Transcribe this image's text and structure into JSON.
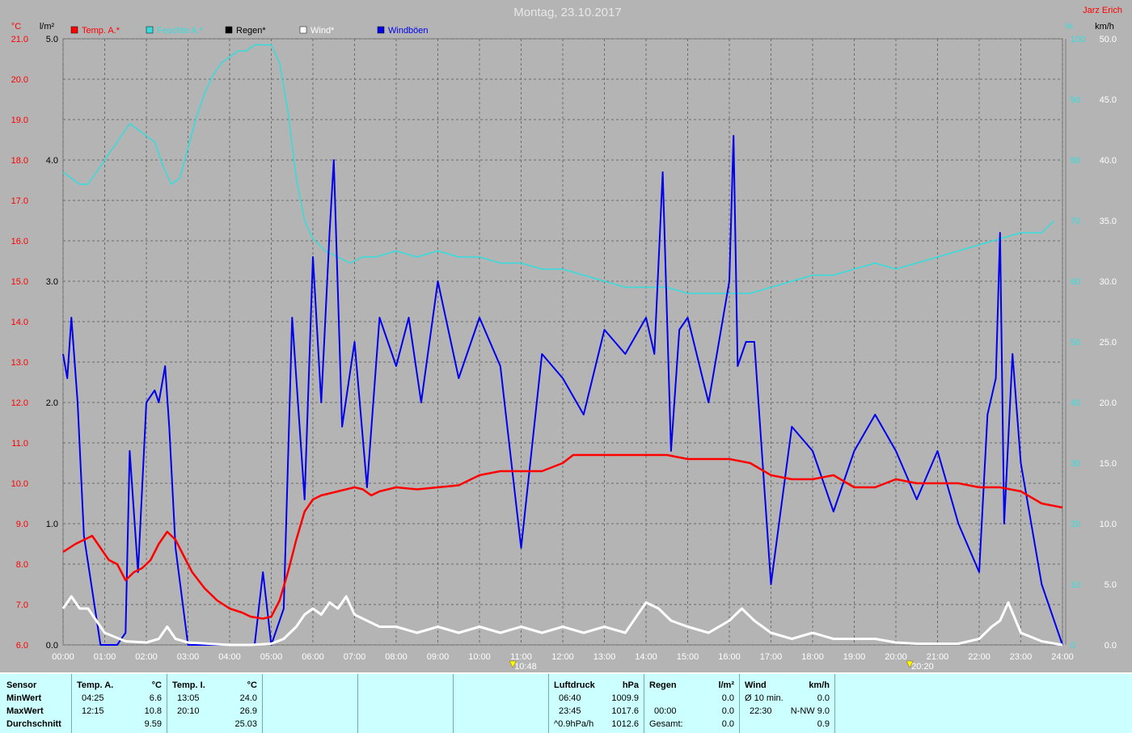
{
  "chart_data": {
    "type": "line",
    "title": "Montag, 23.10.2017",
    "author": "Jarz Erich",
    "legend": [
      {
        "label": "Temp. A.*",
        "color": "#ff0000"
      },
      {
        "label": "Feuchte A.*",
        "color": "#33dddd"
      },
      {
        "label": "Regen*",
        "color": "#000000"
      },
      {
        "label": "Wind*",
        "color": "#ffffff"
      },
      {
        "label": "Windböen",
        "color": "#0000ee"
      }
    ],
    "axes": {
      "temp": {
        "unit": "°C",
        "range": [
          6.0,
          21.0
        ],
        "ticks": [
          "21.0",
          "20.0",
          "19.0",
          "18.0",
          "17.0",
          "16.0",
          "15.0",
          "14.0",
          "13.0",
          "12.0",
          "11.0",
          "10.0",
          "9.0",
          "8.0",
          "7.0",
          "6.0"
        ]
      },
      "rain": {
        "unit": "l/m²",
        "range": [
          0.0,
          5.0
        ],
        "ticks": [
          "5.0",
          "4.0",
          "3.0",
          "2.0",
          "1.0",
          "0.0"
        ]
      },
      "humidity": {
        "unit": "%",
        "range": [
          0,
          100
        ],
        "ticks": [
          "100",
          "90",
          "80",
          "70",
          "60",
          "50",
          "40",
          "30",
          "20",
          "10",
          "0"
        ]
      },
      "wind": {
        "unit": "km/h",
        "range": [
          0.0,
          50.0
        ],
        "ticks": [
          "50.0",
          "45.0",
          "40.0",
          "35.0",
          "30.0",
          "25.0",
          "20.0",
          "15.0",
          "10.0",
          "5.0",
          "0.0"
        ]
      },
      "x": {
        "ticks": [
          "00:00",
          "01:00",
          "02:00",
          "03:00",
          "04:00",
          "05:00",
          "06:00",
          "07:00",
          "08:00",
          "09:00",
          "10:00",
          "11:00",
          "12:00",
          "13:00",
          "14:00",
          "15:00",
          "16:00",
          "17:00",
          "18:00",
          "19:00",
          "20:00",
          "21:00",
          "22:00",
          "23:00",
          "24:00"
        ]
      }
    },
    "grid": true,
    "sunrise": "10:48",
    "sunset": "20:20",
    "series": [
      {
        "name": "Temp. A.*",
        "axis": "temp",
        "x": [
          0,
          0.3,
          0.5,
          0.7,
          0.9,
          1.1,
          1.3,
          1.5,
          1.7,
          1.9,
          2.1,
          2.3,
          2.5,
          2.7,
          2.9,
          3.1,
          3.4,
          3.7,
          4.0,
          4.3,
          4.5,
          4.8,
          5.0,
          5.2,
          5.4,
          5.6,
          5.8,
          6.0,
          6.2,
          6.4,
          6.6,
          6.8,
          7.0,
          7.2,
          7.4,
          7.6,
          7.8,
          8.0,
          8.5,
          9.0,
          9.5,
          10.0,
          10.5,
          11.0,
          11.5,
          12.0,
          12.25,
          12.5,
          13.0,
          13.5,
          14.0,
          14.5,
          15.0,
          15.5,
          16.0,
          16.5,
          17.0,
          17.5,
          18.0,
          18.5,
          19.0,
          19.5,
          20.0,
          20.5,
          21.0,
          21.5,
          22.0,
          22.5,
          23.0,
          23.5,
          24.0
        ],
        "values": [
          8.3,
          8.5,
          8.6,
          8.7,
          8.4,
          8.1,
          8.0,
          7.6,
          7.8,
          7.9,
          8.1,
          8.5,
          8.8,
          8.6,
          8.2,
          7.8,
          7.4,
          7.1,
          6.9,
          6.8,
          6.7,
          6.65,
          6.7,
          7.1,
          7.8,
          8.6,
          9.3,
          9.6,
          9.7,
          9.75,
          9.8,
          9.85,
          9.9,
          9.85,
          9.7,
          9.8,
          9.85,
          9.9,
          9.85,
          9.9,
          9.95,
          10.2,
          10.3,
          10.3,
          10.3,
          10.5,
          10.7,
          10.7,
          10.7,
          10.7,
          10.7,
          10.7,
          10.6,
          10.6,
          10.6,
          10.5,
          10.2,
          10.1,
          10.1,
          10.2,
          9.9,
          9.9,
          10.1,
          10.0,
          10.0,
          10.0,
          9.9,
          9.9,
          9.8,
          9.5,
          9.4
        ]
      },
      {
        "name": "Feuchte A.*",
        "axis": "humidity",
        "x": [
          0,
          0.2,
          0.4,
          0.6,
          0.8,
          1.0,
          1.2,
          1.4,
          1.6,
          1.8,
          2.0,
          2.2,
          2.4,
          2.6,
          2.8,
          3.0,
          3.2,
          3.4,
          3.6,
          3.8,
          4.0,
          4.2,
          4.4,
          4.6,
          4.8,
          5.0,
          5.2,
          5.4,
          5.6,
          5.8,
          6.0,
          6.3,
          6.6,
          6.9,
          7.2,
          7.5,
          8.0,
          8.5,
          9.0,
          9.5,
          10.0,
          10.5,
          11.0,
          11.5,
          12.0,
          12.5,
          13.0,
          13.5,
          14.0,
          14.5,
          15.0,
          15.5,
          16.0,
          16.5,
          17.0,
          17.5,
          18.0,
          18.5,
          19.0,
          19.5,
          20.0,
          20.5,
          21.0,
          21.5,
          22.0,
          22.5,
          23.0,
          23.5,
          23.8
        ],
        "values": [
          78,
          77,
          76,
          76,
          78,
          80,
          82,
          84,
          86,
          85,
          84,
          83,
          79,
          76,
          77,
          82,
          87,
          91,
          94,
          96,
          97,
          98,
          98,
          99,
          99,
          99,
          96,
          88,
          77,
          70,
          67,
          65,
          64,
          63,
          64,
          64,
          65,
          64,
          65,
          64,
          64,
          63,
          63,
          62,
          62,
          61,
          60,
          59,
          59,
          59,
          58,
          58,
          58,
          58,
          59,
          60,
          61,
          61,
          62,
          63,
          62,
          63,
          64,
          65,
          66,
          67,
          68,
          68,
          70
        ]
      },
      {
        "name": "Wind*",
        "axis": "wind",
        "x": [
          0,
          0.2,
          0.4,
          0.6,
          0.8,
          1.0,
          1.5,
          2.0,
          2.3,
          2.5,
          2.7,
          3.0,
          3.5,
          4.0,
          4.5,
          5.0,
          5.3,
          5.6,
          5.8,
          6.0,
          6.2,
          6.4,
          6.6,
          6.8,
          7.0,
          7.3,
          7.6,
          8.0,
          8.5,
          9.0,
          9.5,
          10.0,
          10.5,
          11.0,
          11.5,
          12.0,
          12.5,
          13.0,
          13.5,
          14.0,
          14.3,
          14.6,
          15.0,
          15.5,
          16.0,
          16.3,
          16.6,
          17.0,
          17.5,
          18.0,
          18.5,
          19.0,
          19.5,
          20.0,
          20.5,
          21.0,
          21.5,
          22.0,
          22.3,
          22.5,
          22.7,
          23.0,
          23.5,
          24.0
        ],
        "values": [
          3,
          4,
          3,
          3,
          2,
          1,
          0.3,
          0.2,
          0.5,
          1.5,
          0.5,
          0.2,
          0.1,
          0,
          0,
          0.1,
          0.5,
          1.5,
          2.5,
          3,
          2.5,
          3.5,
          3,
          4,
          2.5,
          2,
          1.5,
          1.5,
          1,
          1.5,
          1,
          1.5,
          1,
          1.5,
          1,
          1.5,
          1,
          1.5,
          1,
          3.5,
          3,
          2,
          1.5,
          1,
          2,
          3,
          2,
          1,
          0.5,
          1,
          0.5,
          0.5,
          0.5,
          0.2,
          0.1,
          0.1,
          0.1,
          0.5,
          1.5,
          2,
          3.5,
          1,
          0.3,
          0
        ]
      },
      {
        "name": "Windböen",
        "axis": "wind",
        "x": [
          0,
          0.1,
          0.2,
          0.35,
          0.5,
          0.9,
          1.3,
          1.5,
          1.6,
          1.8,
          2.0,
          2.2,
          2.3,
          2.45,
          2.55,
          2.7,
          3.0,
          4.0,
          4.5,
          4.6,
          4.8,
          5.0,
          5.3,
          5.5,
          5.8,
          6.0,
          6.2,
          6.4,
          6.5,
          6.7,
          7.0,
          7.3,
          7.6,
          8.0,
          8.3,
          8.6,
          9.0,
          9.5,
          10.0,
          10.5,
          11.0,
          11.5,
          12.0,
          12.5,
          13.0,
          13.5,
          14.0,
          14.2,
          14.4,
          14.6,
          14.8,
          15.0,
          15.5,
          16.0,
          16.1,
          16.2,
          16.4,
          16.6,
          17.0,
          17.5,
          18.0,
          18.5,
          19.0,
          19.5,
          20.0,
          20.5,
          21.0,
          21.5,
          22.0,
          22.2,
          22.4,
          22.5,
          22.6,
          22.8,
          23.0,
          23.5,
          24.0
        ],
        "values": [
          24,
          22,
          27,
          20,
          9,
          0,
          0,
          1,
          16,
          6,
          20,
          21,
          20,
          23,
          18,
          8,
          0,
          0,
          0,
          0,
          6,
          0,
          3,
          27,
          12,
          32,
          20,
          34,
          40,
          18,
          25,
          13,
          27,
          23,
          27,
          20,
          30,
          22,
          27,
          23,
          8,
          24,
          22,
          19,
          26,
          24,
          27,
          24,
          39,
          16,
          26,
          27,
          20,
          30,
          42,
          23,
          25,
          25,
          5,
          18,
          16,
          11,
          16,
          19,
          16,
          12,
          16,
          10,
          6,
          19,
          22,
          34,
          10,
          24,
          15,
          5,
          0
        ]
      }
    ]
  },
  "stats": {
    "sensor": {
      "h": "Sensor",
      "min": "MinWert",
      "max": "MaxWert",
      "avg": "Durchschnitt"
    },
    "temp_a": {
      "h": "Temp. A.",
      "unit": "°C",
      "min_t": "04:25",
      "min_v": "6.6",
      "max_t": "12:15",
      "max_v": "10.8",
      "avg_v": "9.59"
    },
    "temp_i": {
      "h": "Temp. I.",
      "unit": "°C",
      "min_t": "13:05",
      "min_v": "24.0",
      "max_t": "20:10",
      "max_v": "26.9",
      "avg_v": "25.03"
    },
    "pressure": {
      "h": "Luftdruck",
      "unit": "hPa",
      "min_t": "06:40",
      "min_v": "1009.9",
      "max_t": "23:45",
      "max_v": "1017.6",
      "trend": "^0.9hPa/h",
      "avg_v": "1012.6"
    },
    "rain": {
      "h": "Regen",
      "unit": "l/m²",
      "r2_t": "00:00",
      "r2_v": "0.0",
      "r1_v": "0.0",
      "total_l": "Gesamt:",
      "total_v": "0.0"
    },
    "wind": {
      "h": "Wind",
      "unit": "km/h",
      "avg_l": "Ø 10 min.",
      "avg_v": "0.0",
      "max_t": "22:30",
      "max_v": "N-NW 9.0",
      "day_avg": "0.9"
    }
  }
}
